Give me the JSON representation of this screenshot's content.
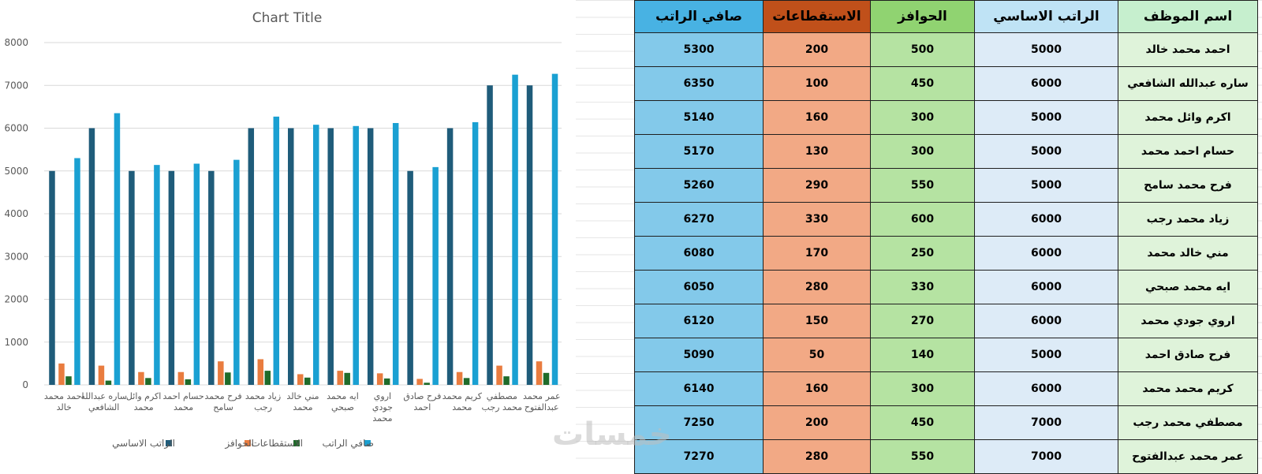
{
  "chart_data": {
    "type": "bar",
    "title": "Chart Title",
    "categories": [
      "احمد محمد خالد",
      "ساره عبدالله الشافعي",
      "اكرم وائل محمد",
      "حسام احمد محمد",
      "فرح محمد سامح",
      "زياد محمد رجب",
      "مني خالد محمد",
      "ايه محمد صبحي",
      "اروي جودي محمد",
      "فرح صادق احمد",
      "كريم محمد محمد",
      "مصطفي محمد رجب",
      "عمر محمد عبدالفتوح"
    ],
    "category_lines": [
      [
        "احمد محمد",
        "خالد"
      ],
      [
        "ساره عبدالله",
        "الشافعي"
      ],
      [
        "اكرم وائل",
        "محمد"
      ],
      [
        "حسام احمد",
        "محمد"
      ],
      [
        "فرح محمد",
        "سامح"
      ],
      [
        "زياد محمد",
        "رجب"
      ],
      [
        "مني خالد",
        "محمد"
      ],
      [
        "ايه محمد",
        "صبحي"
      ],
      [
        "اروي",
        "جودي",
        "محمد"
      ],
      [
        "فرح صادق",
        "احمد"
      ],
      [
        "كريم محمد",
        "محمد"
      ],
      [
        "مصطفي",
        "محمد رجب"
      ],
      [
        "عمر محمد",
        "عبدالفتوح"
      ]
    ],
    "series": [
      {
        "name": "الراتب الاساسي",
        "color": "#1f5c7a",
        "values": [
          5000,
          6000,
          5000,
          5000,
          5000,
          6000,
          6000,
          6000,
          6000,
          5000,
          6000,
          7000,
          7000
        ]
      },
      {
        "name": "الحوافز",
        "color": "#e97c3f",
        "values": [
          500,
          450,
          300,
          300,
          550,
          600,
          250,
          330,
          270,
          140,
          300,
          450,
          550
        ]
      },
      {
        "name": "الاستقطاعات",
        "color": "#1f6b2a",
        "values": [
          200,
          100,
          160,
          130,
          290,
          330,
          170,
          280,
          150,
          50,
          160,
          200,
          280
        ]
      },
      {
        "name": "صافي الراتب",
        "color": "#1aa0d2",
        "values": [
          5300,
          6350,
          5140,
          5170,
          5260,
          6270,
          6080,
          6050,
          6120,
          5090,
          6140,
          7250,
          7270
        ]
      }
    ],
    "ylim": [
      0,
      8000
    ],
    "yticks": [
      0,
      1000,
      2000,
      3000,
      4000,
      5000,
      6000,
      7000,
      8000
    ],
    "grid": true,
    "legend_position": "bottom"
  },
  "table": {
    "headers": [
      {
        "label": "اسم الموظف",
        "cls": "h-name"
      },
      {
        "label": "الراتب الاساسي",
        "cls": "h-base"
      },
      {
        "label": "الحوافز",
        "cls": "h-inc"
      },
      {
        "label": "الاستقطاعات",
        "cls": "h-ded"
      },
      {
        "label": "صافي الراتب",
        "cls": "h-net"
      }
    ],
    "rows": [
      [
        "احمد محمد خالد",
        "5000",
        "500",
        "200",
        "5300"
      ],
      [
        "ساره عبدالله الشافعي",
        "6000",
        "450",
        "100",
        "6350"
      ],
      [
        "اكرم وائل محمد",
        "5000",
        "300",
        "160",
        "5140"
      ],
      [
        "حسام احمد محمد",
        "5000",
        "300",
        "130",
        "5170"
      ],
      [
        "فرح محمد سامح",
        "5000",
        "550",
        "290",
        "5260"
      ],
      [
        "زياد محمد رجب",
        "6000",
        "600",
        "330",
        "6270"
      ],
      [
        "مني خالد محمد",
        "6000",
        "250",
        "170",
        "6080"
      ],
      [
        "ايه محمد صبحي",
        "6000",
        "330",
        "280",
        "6050"
      ],
      [
        "اروي جودي محمد",
        "6000",
        "270",
        "150",
        "6120"
      ],
      [
        "فرح صادق احمد",
        "5000",
        "140",
        "50",
        "5090"
      ],
      [
        "كريم محمد محمد",
        "6000",
        "300",
        "160",
        "6140"
      ],
      [
        "مصطفي محمد رجب",
        "7000",
        "450",
        "200",
        "7250"
      ],
      [
        "عمر محمد عبدالفتوح",
        "7000",
        "550",
        "280",
        "7270"
      ]
    ]
  },
  "watermark": "خمسات"
}
